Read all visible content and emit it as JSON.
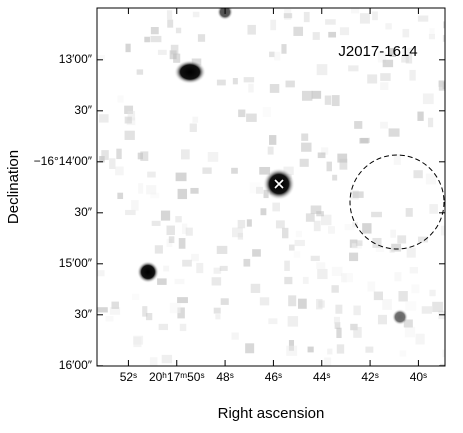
{
  "chart_data": {
    "type": "image",
    "annotation": "J2017-1614",
    "x_label": "Right ascension",
    "y_label": "Declination",
    "xlim": [
      53.3,
      38.9
    ],
    "xticks": [
      {
        "value": 52,
        "label": "52ˢ"
      },
      {
        "value": 50,
        "label": "20ʰ17ᵐ50ˢ"
      },
      {
        "value": 48,
        "label": "48ˢ"
      },
      {
        "value": 46,
        "label": "46ˢ"
      },
      {
        "value": 44,
        "label": "44ˢ"
      },
      {
        "value": 42,
        "label": "42ˢ"
      },
      {
        "value": 40,
        "label": "40ˢ"
      }
    ],
    "ylim": [
      -16.2667,
      -16.2082
    ],
    "yticks": [
      {
        "value": -16.216667,
        "label": "13′00″"
      },
      {
        "value": -16.225,
        "label": "30″"
      },
      {
        "value": -16.233333,
        "label": "−16°14′00″"
      },
      {
        "value": -16.241667,
        "label": "30″"
      },
      {
        "value": -16.25,
        "label": "15′00″"
      },
      {
        "value": -16.258333,
        "label": "30″"
      },
      {
        "value": -16.266667,
        "label": "16′00″"
      }
    ]
  }
}
